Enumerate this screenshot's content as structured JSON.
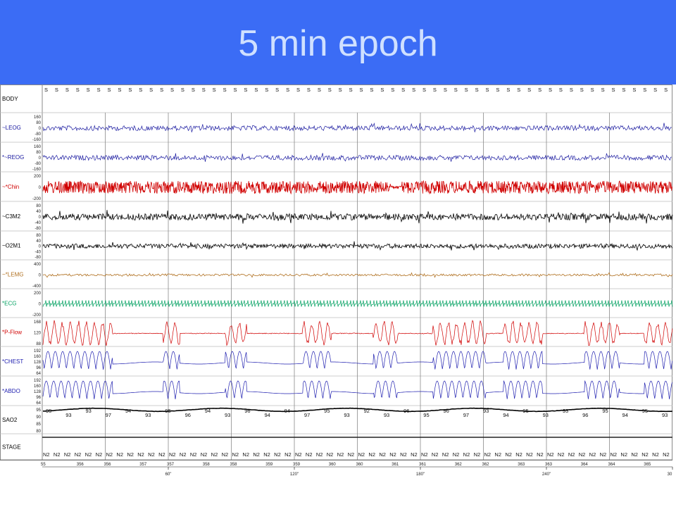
{
  "slide": {
    "title": "5 min epoch"
  },
  "chart_data": {
    "type": "line",
    "title": "",
    "body_positions": [
      "S",
      "S",
      "S",
      "S",
      "S",
      "S",
      "S",
      "S",
      "S",
      "S",
      "S",
      "S",
      "S",
      "S",
      "S",
      "S",
      "S",
      "S",
      "S",
      "S",
      "S",
      "S",
      "S",
      "S",
      "S",
      "S",
      "S",
      "S",
      "S",
      "S",
      "S",
      "S",
      "S",
      "S",
      "S",
      "S",
      "S",
      "S",
      "S",
      "S",
      "S",
      "S",
      "S",
      "S",
      "S",
      "S",
      "S",
      "S",
      "S",
      "S",
      "S",
      "S",
      "S",
      "S",
      "S",
      "S",
      "S",
      "S",
      "S",
      "S"
    ],
    "channels": [
      {
        "name": "BODY",
        "color": "#000000",
        "ticks": []
      },
      {
        "name": "~LEOG",
        "color": "#1a1aa0",
        "ticks": [
          "160",
          "80",
          "0",
          "-80",
          "-160"
        ]
      },
      {
        "name": "*~REOG",
        "color": "#1a1aa0",
        "ticks": [
          "160",
          "80",
          "0",
          "-80",
          "-160"
        ]
      },
      {
        "name": "~*Chin",
        "color": "#d00000",
        "ticks": [
          "200",
          "0",
          "-200"
        ]
      },
      {
        "name": "~C3M2",
        "color": "#000000",
        "ticks": [
          "80",
          "40",
          "0",
          "-40",
          "-80"
        ]
      },
      {
        "name": "~O2M1",
        "color": "#000000",
        "ticks": [
          "80",
          "40",
          "0",
          "-40",
          "-80"
        ]
      },
      {
        "name": "~*LEMG",
        "color": "#b07020",
        "ticks": [
          "400",
          "0",
          "-400"
        ]
      },
      {
        "name": "*ECG",
        "color": "#00a060",
        "ticks": [
          "200",
          "0",
          "-200"
        ]
      },
      {
        "name": "*P-Flow",
        "color": "#d00000",
        "ticks": [
          "168",
          "120",
          "88"
        ]
      },
      {
        "name": "*CHEST",
        "color": "#2020b0",
        "ticks": [
          "192",
          "160",
          "128",
          "96",
          "64"
        ]
      },
      {
        "name": "*ABDO",
        "color": "#2020b0",
        "ticks": [
          "192",
          "160",
          "128",
          "96",
          "64"
        ]
      },
      {
        "name": "SAO2",
        "color": "#000000",
        "ticks": [
          "95",
          "90",
          "85",
          "80"
        ]
      },
      {
        "name": "STAGE",
        "color": "#000000",
        "ticks": []
      }
    ],
    "sao2_values": [
      "95",
      "93",
      "93",
      "97",
      "94",
      "93",
      "95",
      "96",
      "94",
      "93",
      "96",
      "94",
      "94",
      "97",
      "95",
      "93",
      "92",
      "93",
      "96",
      "95",
      "96",
      "97",
      "93",
      "94",
      "95",
      "93",
      "93",
      "96",
      "95",
      "94",
      "95",
      "93"
    ],
    "stages": [
      "N2",
      "N2",
      "N2",
      "N2",
      "N2",
      "N2",
      "N2",
      "N2",
      "N2",
      "N2",
      "N2",
      "N2",
      "N2",
      "N2",
      "N2",
      "N2",
      "N2",
      "N2",
      "N2",
      "N2",
      "N2",
      "N2",
      "N2",
      "N2",
      "N2",
      "N2",
      "N2",
      "N2",
      "N2",
      "N2",
      "N2",
      "N2",
      "N2",
      "N2",
      "N2",
      "N2",
      "N2",
      "N2",
      "N2",
      "N2",
      "N2",
      "N2",
      "N2",
      "N2",
      "N2",
      "N2",
      "N2",
      "N2",
      "N2",
      "N2",
      "N2",
      "N2",
      "N2",
      "N2",
      "N2",
      "N2",
      "N2",
      "N2",
      "N2",
      "N2"
    ],
    "epoch_numbers": [
      "55",
      "356",
      "356",
      "357",
      "357",
      "358",
      "358",
      "359",
      "359",
      "360",
      "360",
      "361",
      "361",
      "362",
      "362",
      "363",
      "363",
      "364",
      "364",
      "365"
    ],
    "time_axis": {
      "ticks": [
        "60\"",
        "120\"",
        "180\"",
        "240\"",
        "30"
      ],
      "range_seconds": [
        0,
        300
      ]
    },
    "grid": true
  }
}
